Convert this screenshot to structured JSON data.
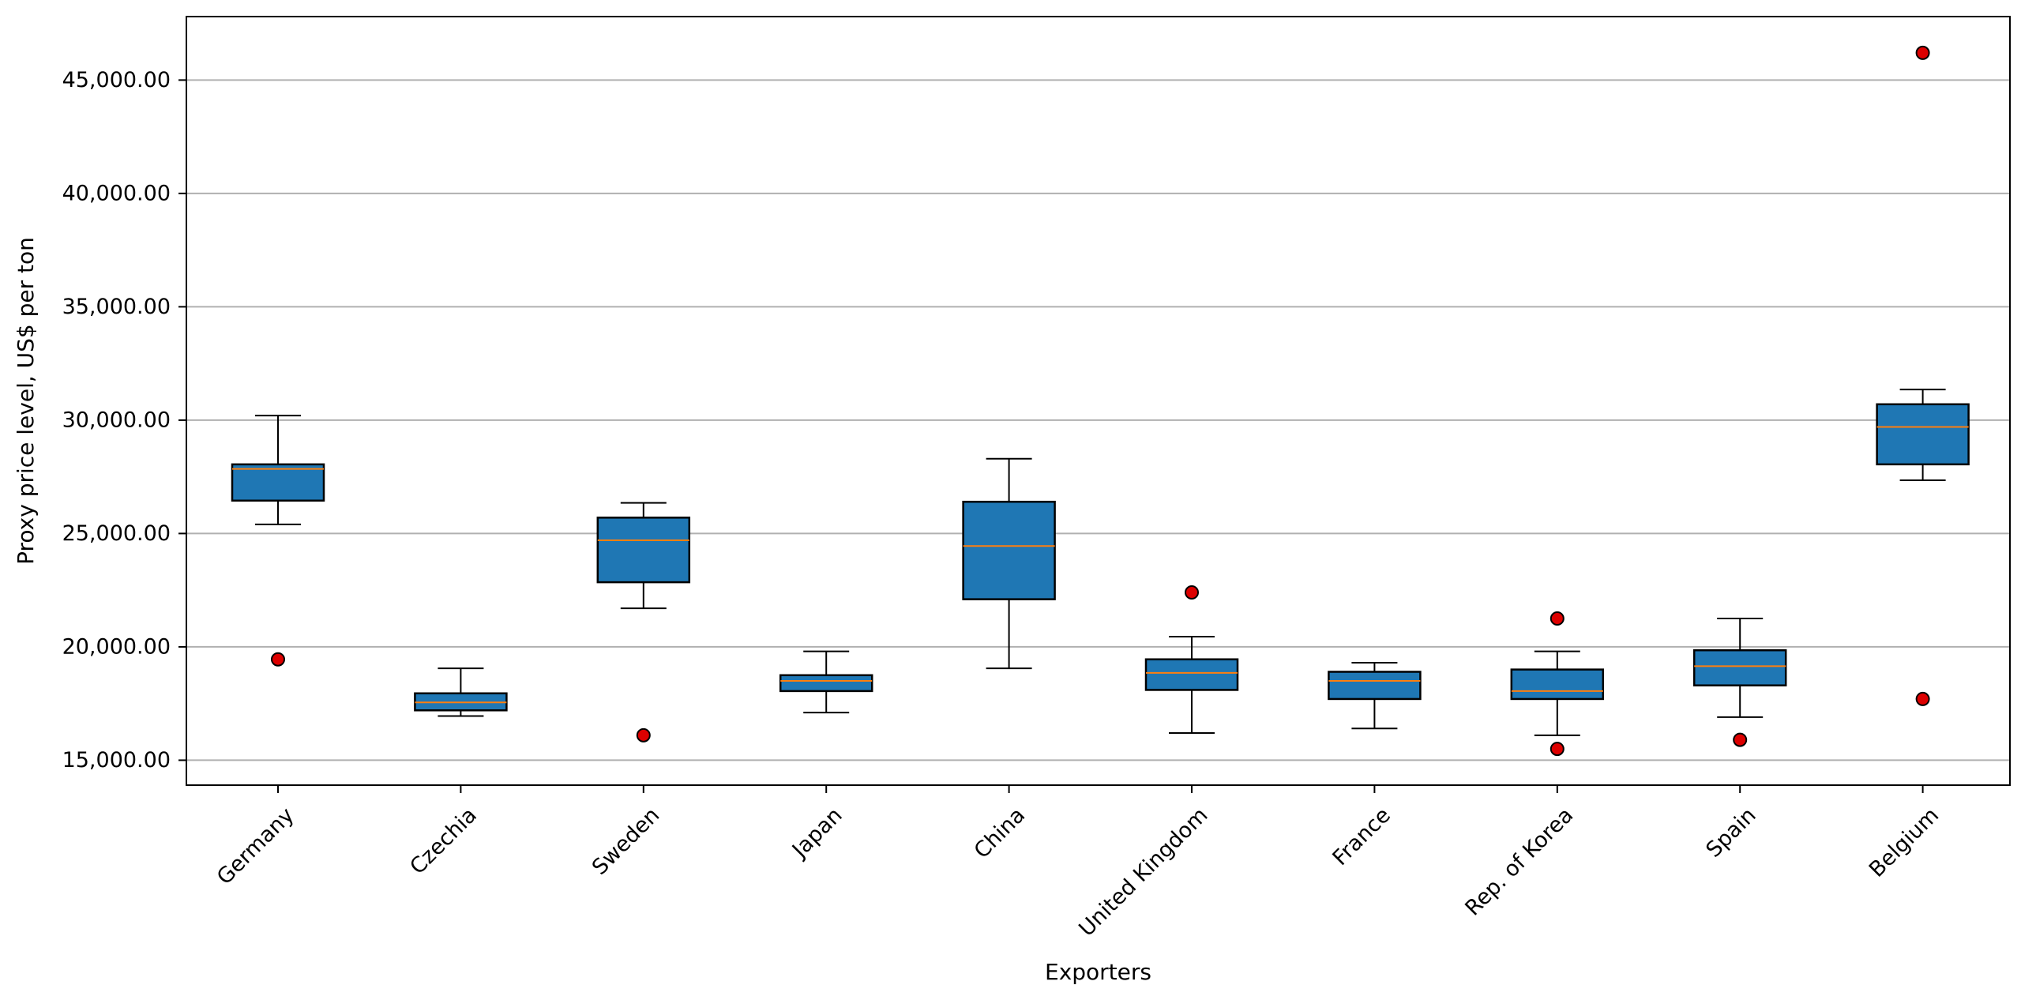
{
  "chart_data": {
    "type": "box",
    "title": "",
    "xlabel": "Exporters",
    "ylabel": "Proxy price level, US$ per ton",
    "ylim": [
      13900,
      47800
    ],
    "yticks": [
      15000,
      20000,
      25000,
      30000,
      35000,
      40000,
      45000
    ],
    "ytick_labels": [
      "15,000.00",
      "20,000.00",
      "25,000.00",
      "30,000.00",
      "35,000.00",
      "40,000.00",
      "45,000.00"
    ],
    "grid": "horizontal",
    "colors": {
      "box_fill": "#1f77b4",
      "median": "#ff7f0e",
      "outlier_fill": "#dd0000",
      "grid": "#b0b0b0",
      "edge": "#000000"
    },
    "categories": [
      "Germany",
      "Czechia",
      "Sweden",
      "Japan",
      "China",
      "United Kingdom",
      "France",
      "Rep. of Korea",
      "Spain",
      "Belgium"
    ],
    "boxes": [
      {
        "whisker_low": 25400,
        "q1": 26450,
        "median": 27850,
        "q3": 28050,
        "whisker_high": 30200,
        "outliers": [
          19450
        ]
      },
      {
        "whisker_low": 16950,
        "q1": 17200,
        "median": 17550,
        "q3": 17950,
        "whisker_high": 19050,
        "outliers": []
      },
      {
        "whisker_low": 21700,
        "q1": 22850,
        "median": 24700,
        "q3": 25700,
        "whisker_high": 26350,
        "outliers": [
          16100
        ]
      },
      {
        "whisker_low": 17100,
        "q1": 18050,
        "median": 18500,
        "q3": 18750,
        "whisker_high": 19800,
        "outliers": []
      },
      {
        "whisker_low": 19050,
        "q1": 22100,
        "median": 24450,
        "q3": 26400,
        "whisker_high": 28300,
        "outliers": []
      },
      {
        "whisker_low": 16200,
        "q1": 18100,
        "median": 18850,
        "q3": 19450,
        "whisker_high": 20450,
        "outliers": [
          22400
        ]
      },
      {
        "whisker_low": 16400,
        "q1": 17700,
        "median": 18500,
        "q3": 18900,
        "whisker_high": 19300,
        "outliers": []
      },
      {
        "whisker_low": 16100,
        "q1": 17700,
        "median": 18050,
        "q3": 19000,
        "whisker_high": 19800,
        "outliers": [
          21250,
          15500
        ]
      },
      {
        "whisker_low": 16900,
        "q1": 18300,
        "median": 19150,
        "q3": 19850,
        "whisker_high": 21250,
        "outliers": [
          15900
        ]
      },
      {
        "whisker_low": 27350,
        "q1": 28050,
        "median": 29700,
        "q3": 30700,
        "whisker_high": 31350,
        "outliers": [
          46200,
          17700
        ]
      }
    ]
  }
}
